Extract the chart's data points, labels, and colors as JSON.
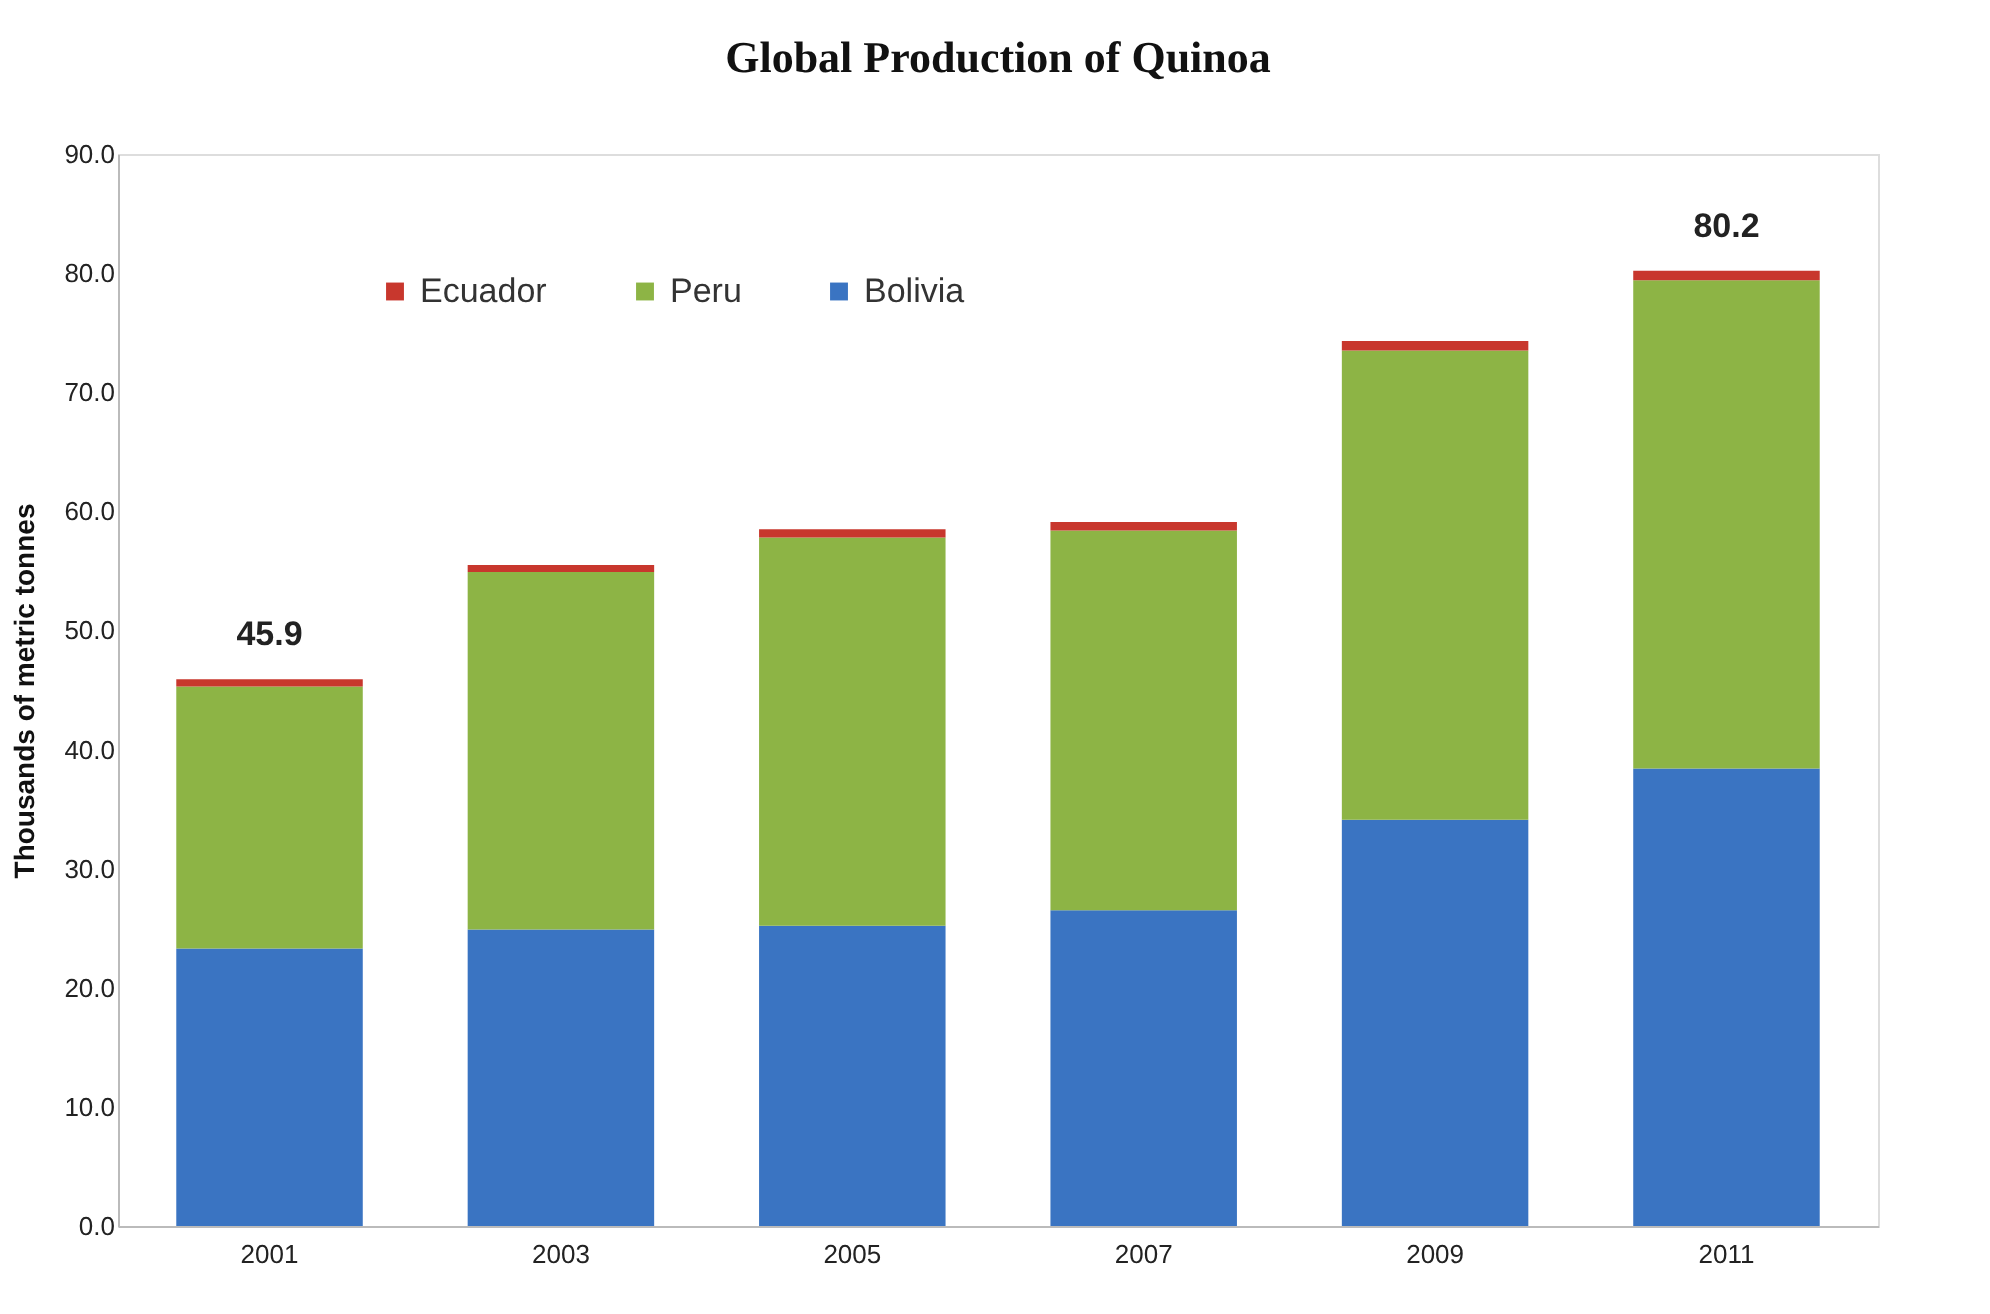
{
  "chart_data": {
    "type": "bar",
    "title": "Global Production of Quinoa",
    "ylabel": "Thousands of metric tonnes",
    "categories": [
      "2001",
      "2003",
      "2005",
      "2007",
      "2009",
      "2011"
    ],
    "stacked": true,
    "series": [
      {
        "name": "Bolivia",
        "color": "#3a74c2",
        "values": [
          23.3,
          24.9,
          25.2,
          26.5,
          34.1,
          38.4
        ]
      },
      {
        "name": "Peru",
        "color": "#8db445",
        "values": [
          22.0,
          30.0,
          32.6,
          31.9,
          39.4,
          41.0
        ]
      },
      {
        "name": "Ecuador",
        "color": "#c8372d",
        "values": [
          0.6,
          0.6,
          0.7,
          0.7,
          0.8,
          0.8
        ]
      }
    ],
    "totals": [
      "45.9",
      null,
      null,
      null,
      null,
      "80.2"
    ],
    "ylim": [
      0,
      90
    ],
    "yticks": [
      {
        "value": 0,
        "label": "0.0"
      },
      {
        "value": 10,
        "label": "10.0"
      },
      {
        "value": 20,
        "label": "20.0"
      },
      {
        "value": 30,
        "label": "30.0"
      },
      {
        "value": 40,
        "label": "40.0"
      },
      {
        "value": 50,
        "label": "50.0"
      },
      {
        "value": 60,
        "label": "60.0"
      },
      {
        "value": 70,
        "label": "70.0"
      },
      {
        "value": 80,
        "label": "80.0"
      },
      {
        "value": 90,
        "label": "90.0"
      }
    ],
    "grid": false,
    "legend": "top left"
  }
}
